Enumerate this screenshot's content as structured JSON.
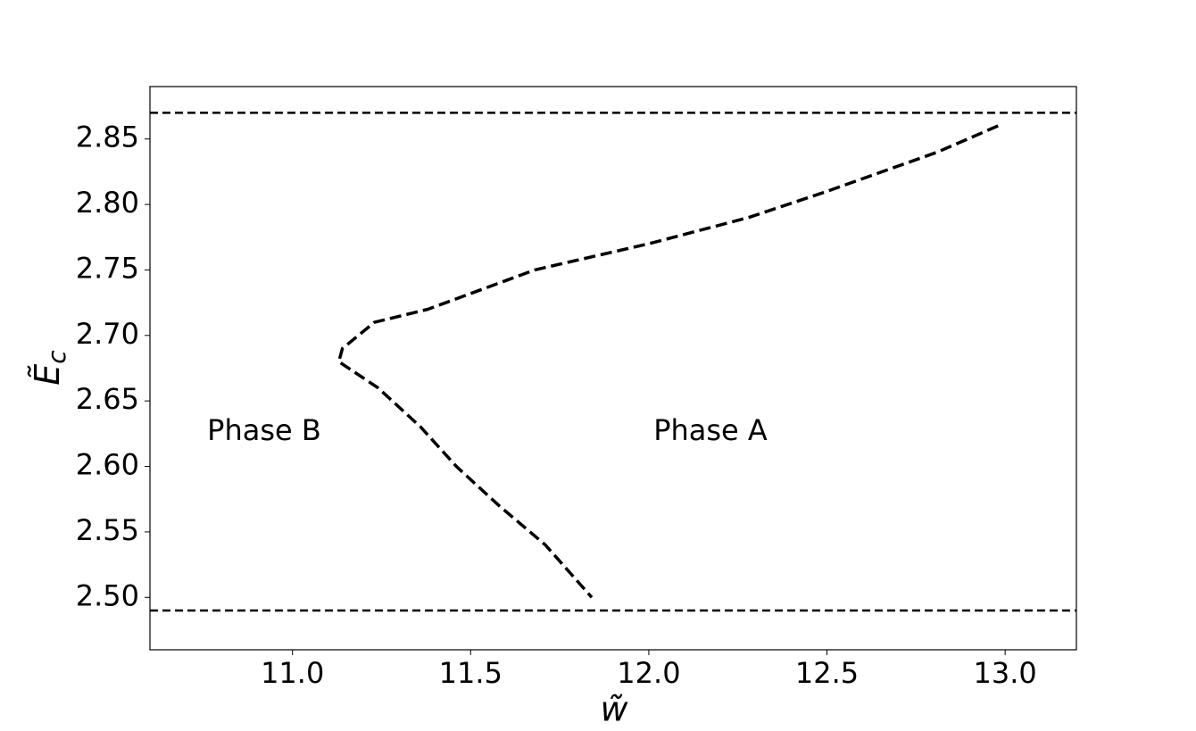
{
  "chart_data": {
    "type": "line",
    "xlabel": "w̃",
    "ylabel": "Ẽc",
    "x": [
      12.98,
      12.81,
      12.5,
      12.28,
      12.0,
      11.68,
      11.38,
      11.23,
      11.14,
      11.13,
      11.24,
      11.36,
      11.46,
      11.58,
      11.71,
      11.84
    ],
    "values": [
      2.86,
      2.84,
      2.81,
      2.79,
      2.77,
      2.75,
      2.72,
      2.71,
      2.69,
      2.68,
      2.66,
      2.63,
      2.6,
      2.57,
      2.54,
      2.5
    ],
    "color": "#000000",
    "hlines": [
      2.87,
      2.49
    ],
    "annotations": [
      "Phase B",
      "Phase A"
    ],
    "xlim": [
      10.6,
      13.2
    ],
    "ylim": [
      2.46,
      2.89
    ],
    "xticks": [
      {
        "value": 11,
        "label": "11.0"
      },
      11.5,
      {
        "value": 12,
        "label": "12.0"
      },
      12.5,
      {
        "value": 13,
        "label": "13.0"
      }
    ],
    "yticks": [
      {
        "value": 2.5,
        "label": "2.50"
      },
      2.55,
      {
        "value": 2.6,
        "label": "2.60"
      },
      2.65,
      {
        "value": 2.7,
        "label": "2.70"
      },
      2.75,
      {
        "value": 2.8,
        "label": "2.80"
      },
      2.85
    ],
    "grid": false
  }
}
